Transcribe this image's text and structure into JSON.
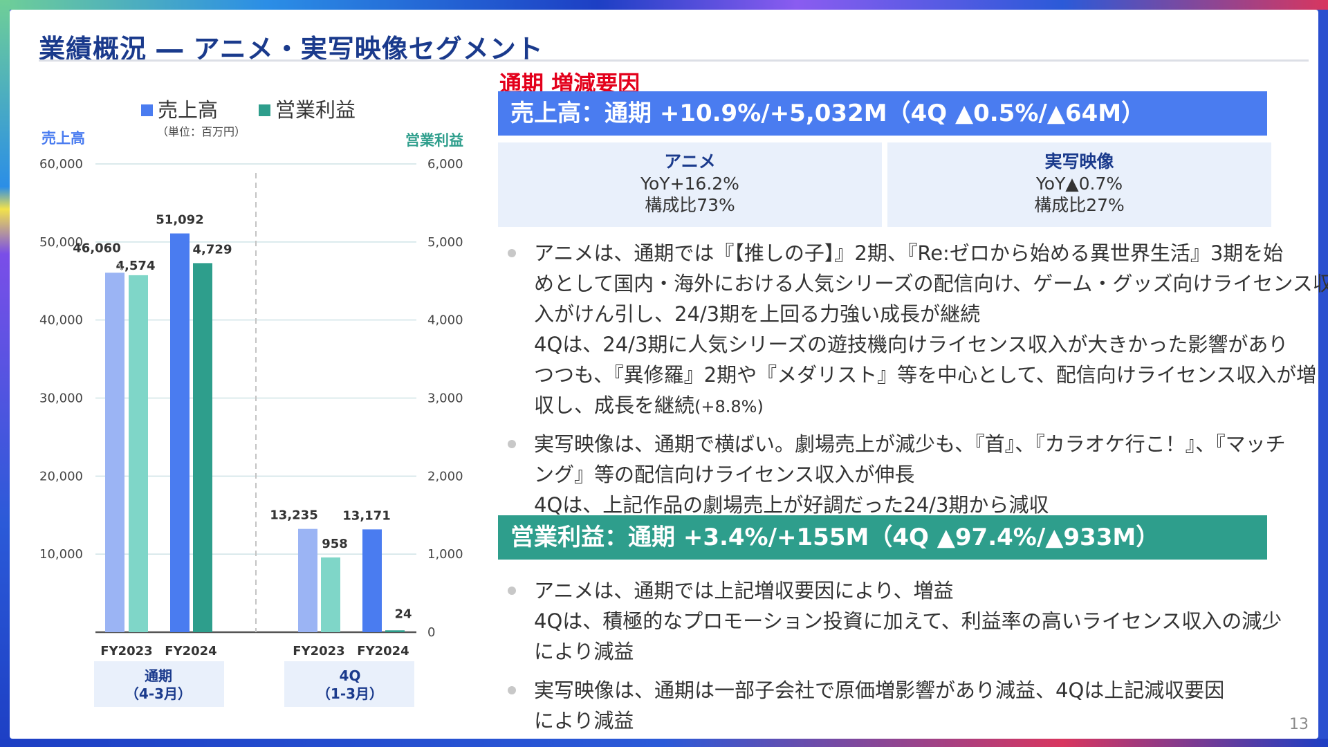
{
  "slide": {
    "title": "業績概況 ― アニメ・実写映像セグメント",
    "page_number": "13"
  },
  "chart_data": {
    "type": "bar",
    "unit_note": "（単位：百万円）",
    "legend": [
      "売上高",
      "営業利益"
    ],
    "left_axis": {
      "label": "売上高",
      "ylim": [
        0,
        60000
      ],
      "ticks": [
        "60,000",
        "50,000",
        "40,000",
        "30,000",
        "20,000",
        "10,000"
      ]
    },
    "right_axis": {
      "label": "営業利益",
      "ylim": [
        0,
        6000
      ],
      "ticks": [
        "6,000",
        "5,000",
        "4,000",
        "3,000",
        "2,000",
        "1,000",
        "0"
      ]
    },
    "groups": [
      {
        "label_line1": "通期",
        "label_line2": "（4-3月）",
        "bars": [
          {
            "category": "FY2023",
            "sales": 46060,
            "profit": 4574,
            "sales_label": "46,060",
            "profit_label": "4,574"
          },
          {
            "category": "FY2024",
            "sales": 51092,
            "profit": 4729,
            "sales_label": "51,092",
            "profit_label": "4,729"
          }
        ]
      },
      {
        "label_line1": "4Q",
        "label_line2": "（1-3月）",
        "bars": [
          {
            "category": "FY2023",
            "sales": 13235,
            "profit": 958,
            "sales_label": "13,235",
            "profit_label": "958"
          },
          {
            "category": "FY2024",
            "sales": 13171,
            "profit": 24,
            "sales_label": "13,171",
            "profit_label": "24"
          }
        ]
      }
    ],
    "colors": {
      "sales_fy2023": "#9bb4f4",
      "sales_fy2024": "#4a7cf0",
      "profit_fy2023": "#7fd6c8",
      "profit_fy2024": "#2e9e8c",
      "legend_sales": "#4a7cf0",
      "legend_profit": "#2e9e8c",
      "axis_left": "#4a7cf0",
      "axis_right": "#2e9e8c"
    }
  },
  "right": {
    "heading": "通期 増減要因",
    "sales_banner": "売上高：通期 +10.9%/+5,032M（4Q ▲0.5%/▲64M）",
    "segments": [
      {
        "name": "アニメ",
        "yoy": "YoY+16.2%",
        "share": "構成比73%"
      },
      {
        "name": "実写映像",
        "yoy": "YoY▲0.7%",
        "share": "構成比27%"
      }
    ],
    "bullet1": [
      "アニメは、通期では『【推しの子】』2期、『Re:ゼロから始める異世界生活』3期を始",
      "めとして国内・海外における人気シリーズの配信向け、ゲーム・グッズ向けライセンス収",
      "入がけん引し、24/3期を上回る力強い成長が継続",
      "4Qは、24/3期に人気シリーズの遊技機向けライセンス収入が大きかった影響があり",
      "つつも、『異修羅』2期や『メダリスト』等を中心として、配信向けライセンス収入が増",
      "収し、成長を継続"
    ],
    "bullet1_tail": "(+8.8%)",
    "bullet2": [
      "実写映像は、通期で横ばい。劇場売上が減少も、『首』、『カラオケ行こ！』、『マッチ",
      "ング』等の配信向けライセンス収入が伸長",
      "4Qは、上記作品の劇場売上が好調だった24/3期から減収"
    ],
    "profit_banner": "営業利益：通期 +3.4%/+155M（4Q ▲97.4%/▲933M）",
    "bullet3": [
      "アニメは、通期では上記増収要因により、増益",
      "4Qは、積極的なプロモーション投資に加えて、利益率の高いライセンス収入の減少",
      "により減益"
    ],
    "bullet4": [
      "実写映像は、通期は一部子会社で原価増影響があり減益、4Qは上記減収要因",
      "により減益"
    ]
  }
}
